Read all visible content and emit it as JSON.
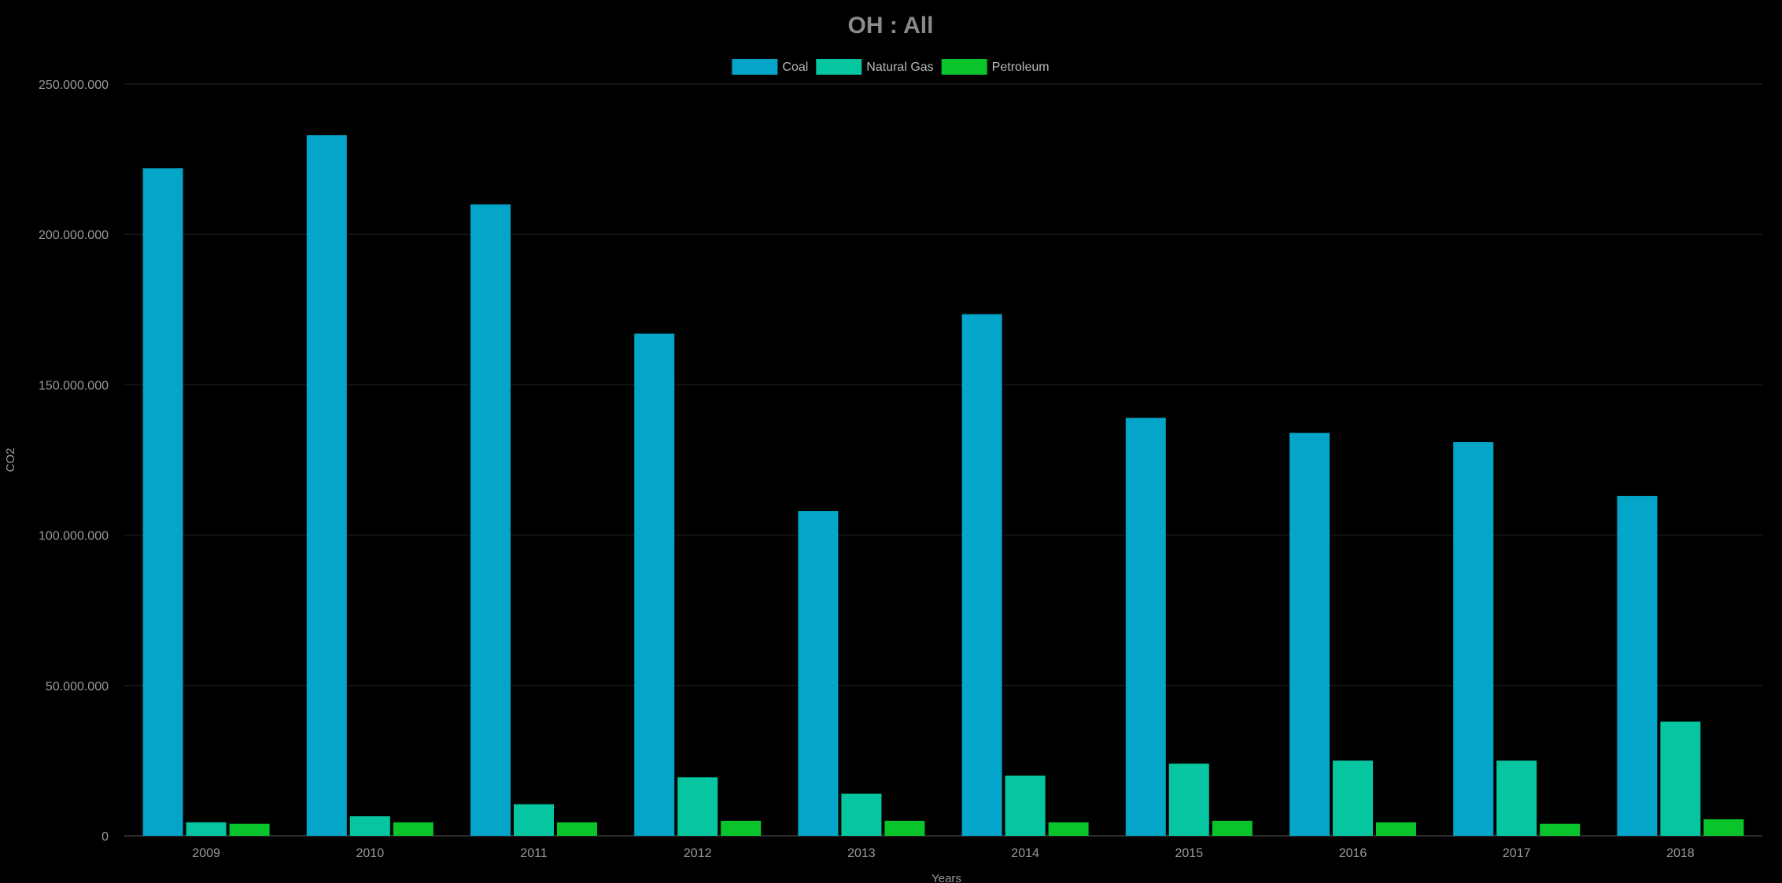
{
  "chart_data": {
    "type": "bar",
    "title": "OH : All",
    "xlabel": "Years",
    "ylabel": "CO2",
    "categories": [
      "2009",
      "2010",
      "2011",
      "2012",
      "2013",
      "2014",
      "2015",
      "2016",
      "2017",
      "2018"
    ],
    "series": [
      {
        "name": "Coal",
        "color": "#03a5c9",
        "values": [
          222000000,
          233000000,
          210000000,
          167000000,
          108000000,
          173500000,
          139000000,
          134000000,
          131000000,
          113000000
        ]
      },
      {
        "name": "Natural Gas",
        "color": "#06c5a1",
        "values": [
          4500000,
          6500000,
          10500000,
          19500000,
          14000000,
          20000000,
          24000000,
          25000000,
          25000000,
          38000000
        ]
      },
      {
        "name": "Petroleum",
        "color": "#0ac42c",
        "values": [
          4000000,
          4500000,
          4500000,
          5000000,
          5000000,
          4500000,
          5000000,
          4500000,
          4000000,
          5500000
        ]
      }
    ],
    "ylim": [
      0,
      250000000
    ],
    "yticks": [
      0,
      50000000,
      100000000,
      150000000,
      200000000,
      250000000
    ],
    "ytick_labels": [
      "0",
      "50.000.000",
      "100.000.000",
      "150.000.000",
      "200.000.000",
      "250.000.000"
    ],
    "grid": true,
    "legend_position": "top-center"
  }
}
